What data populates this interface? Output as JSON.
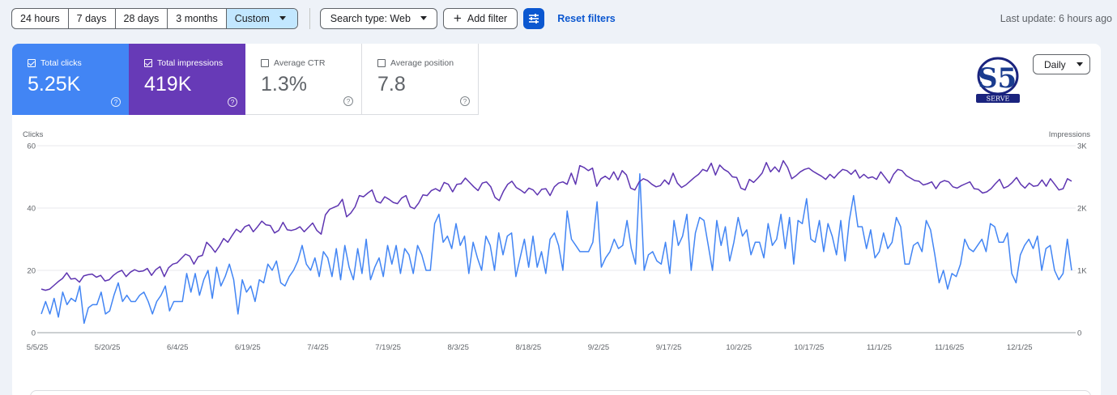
{
  "toolbar": {
    "ranges": [
      "24 hours",
      "7 days",
      "28 days",
      "3 months"
    ],
    "custom_label": "Custom",
    "search_type": "Search type: Web",
    "add_filter": "Add filter",
    "reset_filters": "Reset filters",
    "last_update": "Last update: 6 hours ago",
    "accent": "#0b57d0"
  },
  "metrics": [
    {
      "label": "Total clicks",
      "value": "5.25K",
      "checked": true,
      "color": "#4285f4"
    },
    {
      "label": "Total impressions",
      "value": "419K",
      "checked": true,
      "color": "#673ab7"
    },
    {
      "label": "Average CTR",
      "value": "1.3%",
      "checked": false
    },
    {
      "label": "Average position",
      "value": "7.8",
      "checked": false
    }
  ],
  "help_glyph": "?",
  "granularity": "Daily",
  "logo": {
    "text": "S5",
    "caption": "SERVE"
  },
  "chart_data": {
    "type": "line",
    "ylabel": "Clicks",
    "y2label": "Impressions",
    "ylim": [
      0,
      60
    ],
    "y2lim": [
      0,
      3000
    ],
    "y_ticks": [
      "0",
      "20",
      "40",
      "60"
    ],
    "y2_ticks": [
      "0",
      "1K",
      "2K",
      "3K"
    ],
    "x_ticks": [
      "5/5/25",
      "5/20/25",
      "6/4/25",
      "6/19/25",
      "7/4/25",
      "7/19/25",
      "8/3/25",
      "8/18/25",
      "9/2/25",
      "9/17/25",
      "10/2/25",
      "10/17/25",
      "11/1/25",
      "11/16/25",
      "12/1/25"
    ],
    "x_range": [
      "5/5/25",
      "12/13/25"
    ],
    "grid": true,
    "series": [
      {
        "axis": "left",
        "color": "#4285f4",
        "values": [
          6,
          10,
          6,
          11,
          5,
          13,
          9,
          11,
          10,
          15,
          3,
          8,
          9,
          9,
          13,
          6,
          7,
          12,
          16,
          10,
          12,
          10,
          10,
          12,
          13,
          10,
          6,
          10,
          12,
          15,
          7,
          10,
          10,
          10,
          19,
          13,
          19,
          12,
          17,
          20,
          11,
          21,
          15,
          18,
          22,
          17,
          6,
          17,
          13,
          15,
          10,
          17,
          16,
          22,
          20,
          23,
          16,
          15,
          18,
          20,
          23,
          28,
          22,
          20,
          24,
          18,
          26,
          24,
          18,
          27,
          17,
          28,
          21,
          17,
          27,
          19,
          30,
          17,
          21,
          24,
          18,
          28,
          22,
          28,
          19,
          27,
          25,
          19,
          28,
          25,
          20,
          20,
          35,
          38,
          29,
          31,
          27,
          35,
          28,
          31,
          19,
          29,
          24,
          20,
          31,
          28,
          20,
          32,
          25,
          31,
          32,
          18,
          24,
          30,
          21,
          31,
          21,
          26,
          19,
          30,
          32,
          28,
          20,
          39,
          30,
          28,
          26,
          26,
          26,
          29,
          42,
          21,
          24,
          26,
          30,
          27,
          28,
          36,
          27,
          22,
          51,
          20,
          25,
          26,
          23,
          22,
          29,
          19,
          36,
          28,
          31,
          38,
          20,
          32,
          37,
          36,
          28,
          20,
          36,
          28,
          34,
          23,
          29,
          37,
          31,
          33,
          25,
          29,
          29,
          24,
          35,
          28,
          30,
          38,
          27,
          37,
          22,
          36,
          35,
          43,
          30,
          29,
          36,
          26,
          35,
          31,
          25,
          36,
          23,
          36,
          44,
          34,
          34,
          27,
          33,
          24,
          26,
          32,
          27,
          29,
          37,
          34,
          22,
          22,
          28,
          29,
          26,
          36,
          33,
          25,
          16,
          20,
          14,
          19,
          18,
          22,
          30,
          27,
          26,
          28,
          30,
          26,
          35,
          34,
          29,
          29,
          32,
          19,
          16,
          25,
          28,
          30,
          27,
          31,
          20,
          27,
          28,
          20,
          17,
          19,
          30,
          20
        ]
      },
      {
        "axis": "right",
        "color": "#5e35b1",
        "values": [
          700,
          680,
          700,
          760,
          820,
          870,
          960,
          860,
          870,
          810,
          910,
          930,
          940,
          890,
          920,
          830,
          850,
          920,
          970,
          1000,
          900,
          970,
          1010,
          980,
          990,
          1030,
          920,
          1010,
          1060,
          900,
          1040,
          1100,
          1120,
          1190,
          1260,
          1230,
          1100,
          1220,
          1240,
          1450,
          1380,
          1290,
          1390,
          1510,
          1450,
          1560,
          1660,
          1610,
          1700,
          1730,
          1620,
          1700,
          1790,
          1730,
          1720,
          1600,
          1640,
          1770,
          1650,
          1640,
          1660,
          1700,
          1620,
          1690,
          1760,
          1640,
          1580,
          1890,
          1980,
          2010,
          2040,
          2140,
          1860,
          1920,
          2020,
          2200,
          2180,
          2240,
          2290,
          2110,
          2080,
          2180,
          2140,
          2090,
          2070,
          2160,
          2200,
          2020,
          1990,
          2080,
          2210,
          2200,
          2280,
          2310,
          2270,
          2410,
          2380,
          2260,
          2380,
          2390,
          2480,
          2410,
          2340,
          2280,
          2400,
          2420,
          2340,
          2170,
          2120,
          2270,
          2380,
          2430,
          2330,
          2290,
          2240,
          2320,
          2290,
          2210,
          2300,
          2310,
          2200,
          2340,
          2400,
          2420,
          2380,
          2560,
          2380,
          2680,
          2650,
          2600,
          2640,
          2350,
          2470,
          2510,
          2460,
          2580,
          2450,
          2600,
          2530,
          2320,
          2290,
          2420,
          2470,
          2440,
          2380,
          2340,
          2360,
          2450,
          2380,
          2560,
          2400,
          2330,
          2370,
          2430,
          2490,
          2540,
          2620,
          2590,
          2720,
          2530,
          2690,
          2620,
          2580,
          2500,
          2490,
          2320,
          2290,
          2460,
          2410,
          2480,
          2560,
          2730,
          2580,
          2660,
          2580,
          2760,
          2650,
          2470,
          2520,
          2580,
          2620,
          2640,
          2590,
          2550,
          2510,
          2460,
          2540,
          2480,
          2560,
          2620,
          2600,
          2540,
          2610,
          2480,
          2540,
          2480,
          2500,
          2460,
          2580,
          2490,
          2400,
          2540,
          2620,
          2600,
          2520,
          2480,
          2440,
          2430,
          2370,
          2390,
          2420,
          2310,
          2410,
          2440,
          2420,
          2340,
          2320,
          2360,
          2390,
          2420,
          2310,
          2300,
          2240,
          2260,
          2310,
          2390,
          2460,
          2320,
          2350,
          2410,
          2490,
          2380,
          2320,
          2400,
          2350,
          2360,
          2450,
          2350,
          2470,
          2380,
          2290,
          2310,
          2470,
          2430
        ]
      }
    ]
  }
}
